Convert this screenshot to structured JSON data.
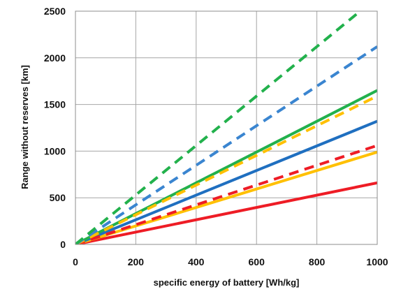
{
  "chart_data": {
    "type": "line",
    "title": "",
    "xlabel": "specific energy of battery [Wh/kg]",
    "ylabel": "Range without reserves [km]",
    "xlim": [
      0,
      1000
    ],
    "ylim": [
      0,
      2500
    ],
    "xticks": [
      0,
      200,
      400,
      600,
      800,
      1000
    ],
    "yticks": [
      0,
      500,
      1000,
      1500,
      2000,
      2500
    ],
    "xtick_labels": [
      "0",
      "200",
      "400",
      "600",
      "800",
      "1000"
    ],
    "ytick_labels": [
      "0",
      "500",
      "1000",
      "1500",
      "2000",
      "2500"
    ],
    "grid": true,
    "legend": "none",
    "series": [
      {
        "color": "#ee1c25",
        "style": "solid",
        "x": [
          0,
          1000
        ],
        "y": [
          0,
          660
        ]
      },
      {
        "color": "#ffc000",
        "style": "solid",
        "x": [
          0,
          1000
        ],
        "y": [
          0,
          990
        ]
      },
      {
        "color": "#1f6fc0",
        "style": "solid",
        "x": [
          0,
          1000
        ],
        "y": [
          0,
          1320
        ]
      },
      {
        "color": "#22b14c",
        "style": "solid",
        "x": [
          0,
          1000
        ],
        "y": [
          0,
          1650
        ]
      },
      {
        "color": "#ee1c25",
        "style": "dashed",
        "x": [
          0,
          1000
        ],
        "y": [
          0,
          1060
        ]
      },
      {
        "color": "#ffc000",
        "style": "dashed",
        "x": [
          0,
          1000
        ],
        "y": [
          0,
          1590
        ]
      },
      {
        "color": "#3a85d0",
        "style": "dashed",
        "x": [
          0,
          1000
        ],
        "y": [
          0,
          2120
        ]
      },
      {
        "color": "#22b14c",
        "style": "dashed",
        "x": [
          0,
          1000
        ],
        "y": [
          0,
          2650
        ]
      }
    ]
  }
}
